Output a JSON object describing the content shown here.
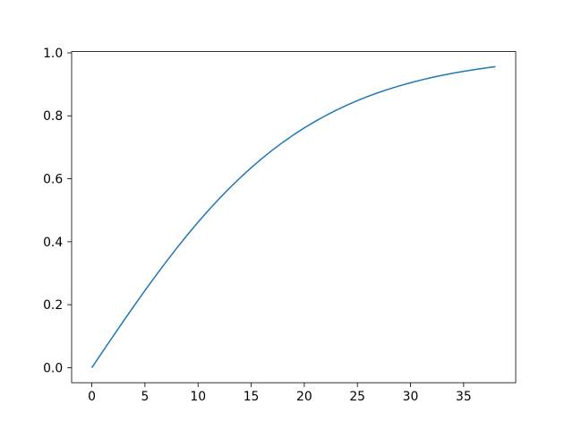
{
  "figure": {
    "background": "#ffffff",
    "title": ""
  },
  "chart_data": {
    "type": "line",
    "title": "",
    "xlabel": "",
    "ylabel": "",
    "grid": false,
    "legend": null,
    "line_color": "#1f77b4",
    "line_width": 1.5,
    "spine_color": "#000000",
    "tick_color": "#000000",
    "xlim": [
      -1.9,
      39.9
    ],
    "ylim": [
      -0.0478,
      1.004
    ],
    "xticks": [
      0,
      5,
      10,
      15,
      20,
      25,
      30,
      35
    ],
    "xtick_labels": [
      "0",
      "5",
      "10",
      "15",
      "20",
      "25",
      "30",
      "35"
    ],
    "yticks": [
      0.0,
      0.2,
      0.4,
      0.6,
      0.8,
      1.0
    ],
    "ytick_labels": [
      "0.0",
      "0.2",
      "0.4",
      "0.6",
      "0.8",
      "1.0"
    ],
    "x": [
      0,
      1,
      2,
      3,
      4,
      5,
      6,
      7,
      8,
      9,
      10,
      11,
      12,
      13,
      14,
      15,
      16,
      17,
      18,
      19,
      20,
      21,
      22,
      23,
      24,
      25,
      26,
      27,
      28,
      29,
      30,
      31,
      32,
      33,
      34,
      35,
      36,
      37,
      38
    ],
    "y": [
      0.0,
      0.05,
      0.0997,
      0.1489,
      0.1974,
      0.2449,
      0.2913,
      0.3364,
      0.3799,
      0.4219,
      0.4621,
      0.5005,
      0.537,
      0.5717,
      0.6044,
      0.6351,
      0.664,
      0.6911,
      0.7163,
      0.7398,
      0.7616,
      0.7818,
      0.8005,
      0.8178,
      0.8337,
      0.8483,
      0.8617,
      0.8741,
      0.8854,
      0.8957,
      0.9051,
      0.9138,
      0.9217,
      0.9289,
      0.9354,
      0.9414,
      0.9468,
      0.9517,
      0.9562
    ]
  }
}
